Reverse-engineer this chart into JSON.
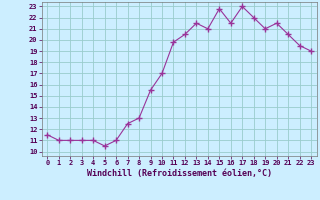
{
  "hours": [
    0,
    1,
    2,
    3,
    4,
    5,
    6,
    7,
    8,
    9,
    10,
    11,
    12,
    13,
    14,
    15,
    16,
    17,
    18,
    19,
    20,
    21,
    22,
    23
  ],
  "values": [
    11.5,
    11.0,
    11.0,
    11.0,
    11.0,
    10.5,
    11.0,
    12.5,
    13.0,
    15.5,
    17.0,
    19.8,
    20.5,
    21.5,
    21.0,
    22.8,
    21.5,
    23.0,
    22.0,
    21.0,
    21.5,
    20.5,
    19.5,
    19.0
  ],
  "line_color": "#993399",
  "marker": "+",
  "marker_size": 4,
  "bg_color": "#cceeff",
  "grid_color": "#99cccc",
  "xlabel": "Windchill (Refroidissement éolien,°C)",
  "ytick_min": 10,
  "ytick_max": 23,
  "ytick_step": 1,
  "xtick_labels": [
    "0",
    "1",
    "2",
    "3",
    "4",
    "5",
    "6",
    "7",
    "8",
    "9",
    "10",
    "11",
    "12",
    "13",
    "14",
    "15",
    "16",
    "17",
    "18",
    "19",
    "20",
    "21",
    "22",
    "23"
  ]
}
